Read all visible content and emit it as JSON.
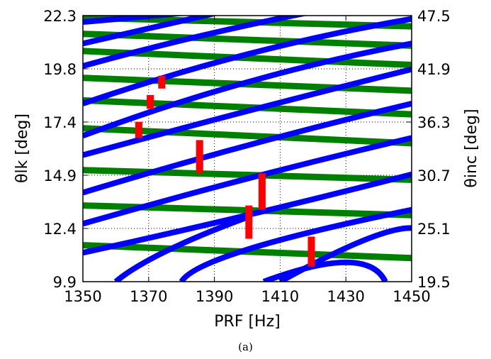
{
  "caption": "(a)",
  "chart_data": {
    "type": "line",
    "xlabel": "PRF [Hz]",
    "ylabel": "θlk [deg]",
    "ylabel_right": "θinc [deg]",
    "xlim": [
      1350,
      1450
    ],
    "ylim": [
      9.9,
      22.3
    ],
    "y2lim": [
      19.5,
      47.5
    ],
    "x_ticks": [
      "1350",
      "1370",
      "1390",
      "1410",
      "1430",
      "1450"
    ],
    "y_ticks": [
      "9.9",
      "12.4",
      "14.9",
      "17.4",
      "19.8",
      "22.3"
    ],
    "y2_ticks": [
      "19.5",
      "25.1",
      "30.7",
      "36.3",
      "41.9",
      "47.5"
    ],
    "grid": true,
    "colors": {
      "blue": "#0000ff",
      "green": "#007f00",
      "red": "#ff0000"
    },
    "series": [
      {
        "color": "blue",
        "points": [
          [
            1350,
            22.0
          ],
          [
            1390,
            22.55
          ]
        ]
      },
      {
        "color": "blue",
        "points": [
          [
            1350,
            21.0
          ],
          [
            1400,
            22.75
          ]
        ]
      },
      {
        "color": "blue",
        "points": [
          [
            1350,
            19.95
          ],
          [
            1400,
            21.85
          ],
          [
            1450,
            23.3
          ]
        ]
      },
      {
        "color": "blue",
        "points": [
          [
            1350,
            18.2
          ],
          [
            1400,
            20.5
          ],
          [
            1450,
            22.15
          ]
        ]
      },
      {
        "color": "blue",
        "points": [
          [
            1350,
            16.7
          ],
          [
            1400,
            19.2
          ],
          [
            1450,
            21.0
          ]
        ]
      },
      {
        "color": "blue",
        "points": [
          [
            1350,
            15.8
          ],
          [
            1400,
            17.85
          ],
          [
            1450,
            19.8
          ]
        ]
      },
      {
        "color": "blue",
        "points": [
          [
            1350,
            14.05
          ],
          [
            1400,
            16.25
          ],
          [
            1450,
            18.2
          ]
        ]
      },
      {
        "color": "blue",
        "points": [
          [
            1350,
            12.6
          ],
          [
            1400,
            14.7
          ],
          [
            1450,
            16.6
          ]
        ]
      },
      {
        "color": "blue",
        "points": [
          [
            1350,
            11.25
          ],
          [
            1400,
            13.0
          ],
          [
            1450,
            14.9
          ]
        ]
      },
      {
        "color": "blue",
        "points": [
          [
            1380,
            9.9
          ],
          [
            1400,
            11.4
          ],
          [
            1450,
            13.25
          ]
        ]
      },
      {
        "color": "blue",
        "points": [
          [
            1360,
            9.9
          ],
          [
            1375,
            11.3
          ],
          [
            1400,
            12.9
          ]
        ]
      },
      {
        "color": "blue",
        "points": [
          [
            1410,
            9.9
          ],
          [
            1435,
            11.8
          ],
          [
            1450,
            12.4
          ]
        ]
      },
      {
        "color": "blue",
        "points": [
          [
            1405,
            9.9
          ],
          [
            1430,
            10.8
          ],
          [
            1442,
            9.9
          ]
        ]
      },
      {
        "color": "green",
        "points": [
          [
            1350,
            22.2
          ],
          [
            1450,
            21.8
          ]
        ]
      },
      {
        "color": "green",
        "points": [
          [
            1350,
            21.45
          ],
          [
            1450,
            20.9
          ]
        ]
      },
      {
        "color": "green",
        "points": [
          [
            1350,
            20.65
          ],
          [
            1450,
            20.0
          ]
        ]
      },
      {
        "color": "green",
        "points": [
          [
            1350,
            19.4
          ],
          [
            1450,
            18.8
          ]
        ]
      },
      {
        "color": "green",
        "points": [
          [
            1350,
            18.35
          ],
          [
            1450,
            17.7
          ]
        ]
      },
      {
        "color": "green",
        "points": [
          [
            1350,
            17.05
          ],
          [
            1450,
            16.35
          ]
        ]
      },
      {
        "color": "green",
        "points": [
          [
            1350,
            15.1
          ],
          [
            1450,
            14.65
          ]
        ]
      },
      {
        "color": "green",
        "points": [
          [
            1350,
            13.45
          ],
          [
            1450,
            13.0
          ]
        ]
      },
      {
        "color": "green",
        "points": [
          [
            1350,
            11.6
          ],
          [
            1450,
            11.0
          ]
        ]
      }
    ],
    "markers": [
      {
        "x": 1374,
        "y_low": 18.9,
        "y_high": 19.5
      },
      {
        "x": 1370.5,
        "y_low": 17.95,
        "y_high": 18.6
      },
      {
        "x": 1367,
        "y_low": 16.6,
        "y_high": 17.35
      },
      {
        "x": 1385.5,
        "y_low": 14.95,
        "y_high": 16.5
      },
      {
        "x": 1404.5,
        "y_low": 13.25,
        "y_high": 14.95
      },
      {
        "x": 1400.5,
        "y_low": 11.9,
        "y_high": 13.45
      },
      {
        "x": 1419.5,
        "y_low": 10.6,
        "y_high": 12.0
      }
    ]
  }
}
